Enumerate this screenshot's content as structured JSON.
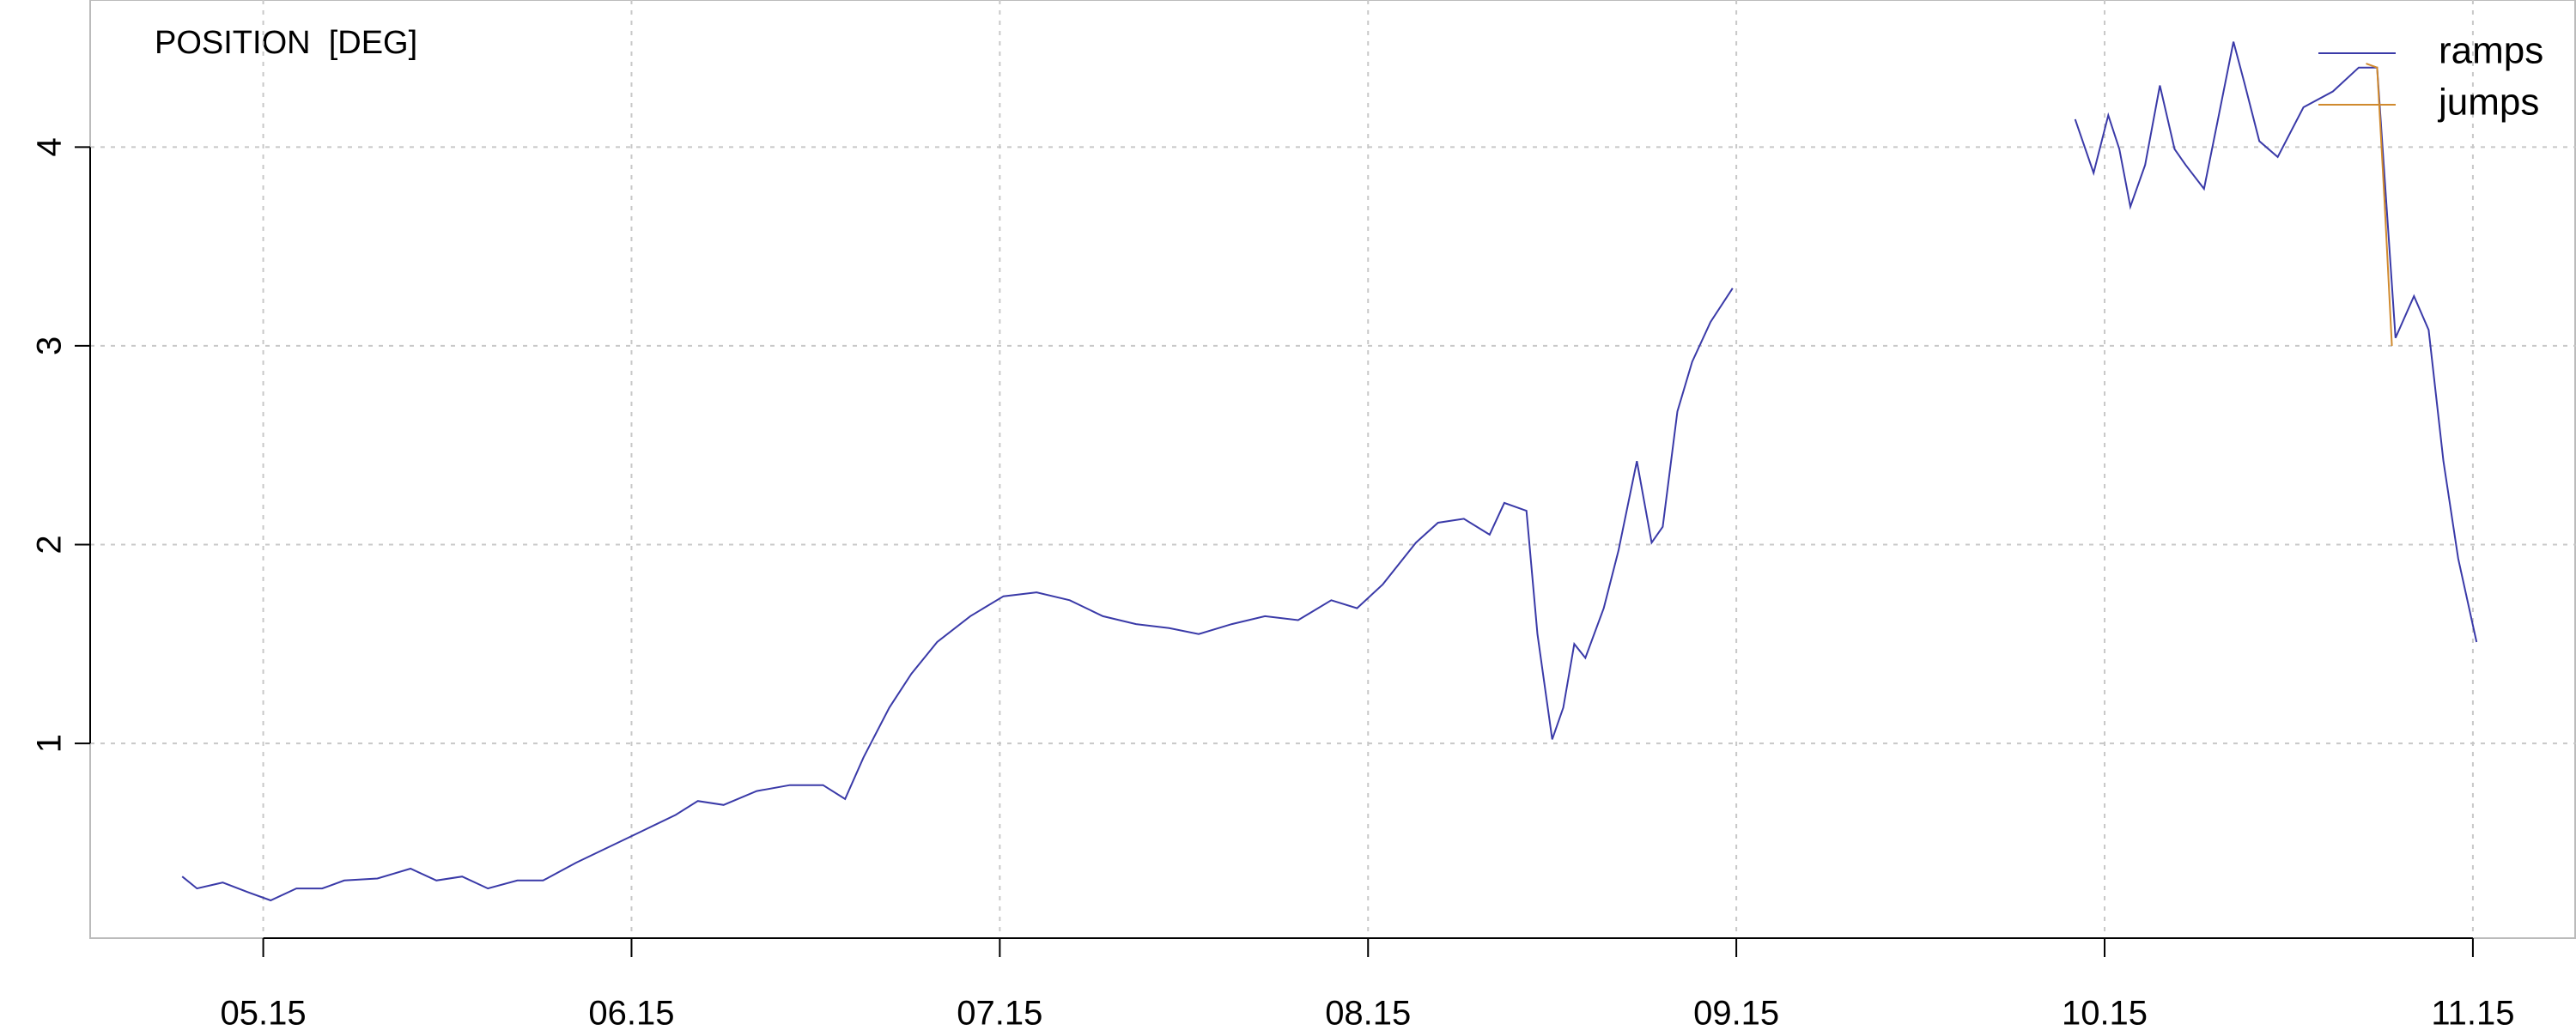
{
  "chart_data": {
    "type": "line",
    "title": "POSITION  [DEG]",
    "xlim": [
      4.53,
      11.28
    ],
    "ylim": [
      0.02,
      4.74
    ],
    "xticks": [
      {
        "value": 5,
        "label": "05.15"
      },
      {
        "value": 6,
        "label": "06.15"
      },
      {
        "value": 7,
        "label": "07.15"
      },
      {
        "value": 8,
        "label": "08.15"
      },
      {
        "value": 9,
        "label": "09.15"
      },
      {
        "value": 10,
        "label": "10.15"
      },
      {
        "value": 11,
        "label": "11.15"
      }
    ],
    "yticks": [
      1,
      2,
      3,
      4
    ],
    "grid": true,
    "legend": "top-right",
    "series": [
      {
        "name": "ramps",
        "color": "#3a3aa8",
        "x": [
          4.78,
          4.82,
          4.89,
          4.96,
          5.02,
          5.09,
          5.16,
          5.22,
          5.31,
          5.4,
          5.47,
          5.54,
          5.61,
          5.69,
          5.76,
          5.85,
          5.94,
          6.03,
          6.12,
          6.18,
          6.25,
          6.34,
          6.43,
          6.52,
          6.58,
          6.63,
          6.7,
          6.76,
          6.83,
          6.92,
          7.01,
          7.1,
          7.19,
          7.28,
          7.37,
          7.46,
          7.54,
          7.63,
          7.72,
          7.81,
          7.9,
          7.97,
          8.04,
          8.13,
          8.19,
          8.26,
          8.33,
          8.37,
          8.43,
          8.46,
          8.5,
          8.53,
          8.56,
          8.59,
          8.64,
          8.68,
          8.73,
          8.77,
          8.8,
          8.84,
          8.88,
          8.93,
          8.99,
          9.5,
          9.92,
          9.97,
          10.01,
          10.04,
          10.07,
          10.11,
          10.15,
          10.19,
          10.22,
          10.27,
          10.31,
          10.35,
          10.38,
          10.42,
          10.47,
          10.54,
          10.62,
          10.69,
          10.74,
          10.79,
          10.84,
          10.88,
          10.92,
          10.96,
          11.01
        ],
        "values": [
          0.33,
          0.27,
          0.3,
          0.25,
          0.21,
          0.27,
          0.27,
          0.31,
          0.32,
          0.37,
          0.31,
          0.33,
          0.27,
          0.31,
          0.31,
          0.4,
          0.48,
          0.56,
          0.64,
          0.71,
          0.69,
          0.76,
          0.79,
          0.79,
          0.72,
          0.93,
          1.18,
          1.35,
          1.51,
          1.64,
          1.74,
          1.76,
          1.72,
          1.64,
          1.6,
          1.58,
          1.55,
          1.6,
          1.64,
          1.62,
          1.72,
          1.68,
          1.8,
          2.01,
          2.11,
          2.13,
          2.05,
          2.21,
          2.17,
          1.55,
          1.02,
          1.18,
          1.5,
          1.43,
          1.68,
          1.97,
          2.42,
          2.01,
          2.09,
          2.67,
          2.92,
          3.12,
          3.29,
          null,
          4.14,
          3.87,
          4.16,
          3.99,
          3.7,
          3.91,
          4.31,
          3.99,
          3.91,
          3.79,
          4.16,
          4.53,
          4.32,
          4.03,
          3.95,
          4.2,
          4.28,
          4.4,
          4.4,
          3.04,
          3.25,
          3.08,
          2.42,
          1.93,
          1.51
        ]
      },
      {
        "name": "jumps",
        "color": "#d08a2e",
        "x": [
          10.71,
          10.74,
          10.76,
          10.78
        ],
        "values": [
          4.42,
          4.4,
          3.73,
          3.0
        ]
      }
    ]
  }
}
